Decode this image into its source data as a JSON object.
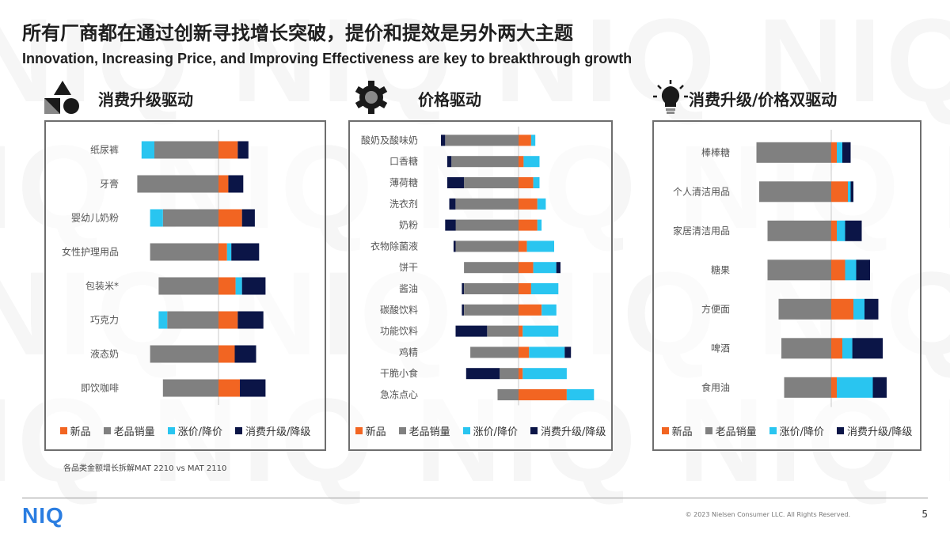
{
  "header": {
    "title_cn": "所有厂商都在通过创新寻找增长突破，提价和提效是另外两大主题",
    "title_en": "Innovation, Increasing Price, and Improving Effectiveness are key to breakthrough growth"
  },
  "colors": {
    "new": "#f26522",
    "old": "#808080",
    "price": "#29c5f0",
    "upgrade": "#0b1547",
    "brand": "#2a7de1"
  },
  "legend": {
    "new": "新品",
    "old": "老品销量",
    "price": "涨价/降价",
    "upgrade": "消费升级/降级"
  },
  "chart_data": [
    {
      "type": "bar",
      "stacked": "diverging",
      "title": "消费升级驱动",
      "icon": "shapes-icon",
      "categories": [
        "纸尿裤",
        "牙膏",
        "婴幼儿奶粉",
        "女性护理用品",
        "包装米*",
        "巧克力",
        "液态奶",
        "即饮咖啡"
      ],
      "series": [
        {
          "name": "新品",
          "values": [
            4.5,
            2.3,
            5.5,
            2.0,
            4.0,
            4.5,
            3.8,
            5.0
          ]
        },
        {
          "name": "老品销量",
          "values": [
            -15,
            -19,
            -13,
            -16,
            -14,
            -12,
            -16,
            -13
          ]
        },
        {
          "name": "涨价/降价",
          "values": [
            -3,
            0,
            -3,
            1.0,
            1.5,
            -2.0,
            0,
            0
          ]
        },
        {
          "name": "消费升级/降级",
          "values": [
            2.5,
            3.5,
            3.0,
            6.5,
            5.5,
            6.0,
            5.0,
            6.0
          ]
        }
      ]
    },
    {
      "type": "bar",
      "stacked": "diverging",
      "title": "价格驱动",
      "icon": "gear-icon",
      "categories": [
        "酸奶及酸味奶",
        "口香糖",
        "薄荷糖",
        "洗衣剂",
        "奶粉",
        "衣物除菌液",
        "饼干",
        "酱油",
        "碳酸饮料",
        "功能饮料",
        "鸡精",
        "干脆小食",
        "急冻点心"
      ],
      "series": [
        {
          "name": "新品",
          "values": [
            3.0,
            1.2,
            3.5,
            4.5,
            4.5,
            2.0,
            3.5,
            3.0,
            5.5,
            1.0,
            2.5,
            1.0,
            11.5
          ]
        },
        {
          "name": "老品销量",
          "values": [
            -17.5,
            -16,
            -13,
            -15,
            -15,
            -15,
            -13,
            -13,
            -13,
            -7.5,
            -11.5,
            -4.5,
            -5.0
          ]
        },
        {
          "name": "涨价/降价",
          "values": [
            1.0,
            3.8,
            1.5,
            2.0,
            1.0,
            6.5,
            5.5,
            6.5,
            3.5,
            8.5,
            8.5,
            10.5,
            6.5
          ]
        },
        {
          "name": "消费升级/降级",
          "values": [
            -1.0,
            -1.0,
            -4.0,
            -1.5,
            -2.5,
            -0.5,
            1.0,
            -0.5,
            -0.5,
            -7.5,
            1.5,
            -8.0,
            0
          ]
        }
      ]
    },
    {
      "type": "bar",
      "stacked": "diverging",
      "title": "消费升级/价格双驱动",
      "icon": "lightbulb-icon",
      "categories": [
        "棒棒糖",
        "个人清洁用品",
        "家居清洁用品",
        "糖果",
        "方便面",
        "啤酒",
        "食用油"
      ],
      "series": [
        {
          "name": "新品",
          "values": [
            1.0,
            3.0,
            1.0,
            2.5,
            4.0,
            2.0,
            1.0
          ]
        },
        {
          "name": "老品销量",
          "values": [
            -13.5,
            -13,
            -11.5,
            -11.5,
            -9.5,
            -9,
            -8.5
          ]
        },
        {
          "name": "涨价/降价",
          "values": [
            1.0,
            0.5,
            1.5,
            2.0,
            2.0,
            1.8,
            6.5
          ]
        },
        {
          "name": "消费升级/降级",
          "values": [
            1.5,
            0.5,
            3.0,
            2.5,
            2.5,
            5.5,
            2.5
          ]
        }
      ]
    }
  ],
  "footnote": "各品类金额增长拆解MAT 2210 vs MAT 2110",
  "footer": {
    "logo": "NIQ",
    "copyright": "© 2023 Nielsen Consumer LLC. All Rights Reserved.",
    "page": "5"
  }
}
